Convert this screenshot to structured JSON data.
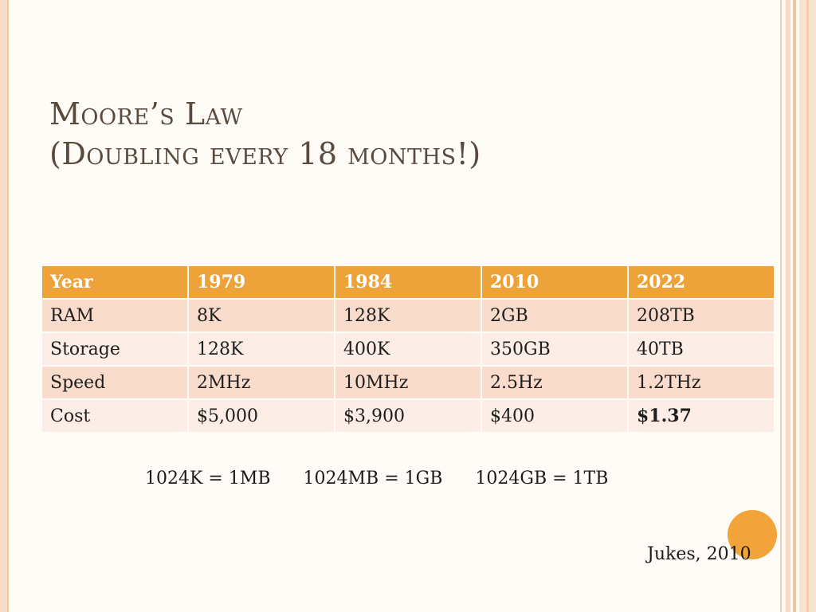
{
  "title": {
    "line1": "Moore’s Law",
    "line2": "(Doubling every 18 months!)"
  },
  "table": {
    "headers": [
      "Year",
      "1979",
      "1984",
      "2010",
      "2022"
    ],
    "rows": [
      [
        "RAM",
        "8K",
        "128K",
        "2GB",
        "208TB"
      ],
      [
        "Storage",
        "128K",
        "400K",
        "350GB",
        "40TB"
      ],
      [
        "Speed",
        "2MHz",
        "10MHz",
        "2.5Hz",
        "1.2THz"
      ],
      [
        "Cost",
        "$5,000",
        "$3,900",
        "$400",
        "$1.37"
      ]
    ]
  },
  "conversions": [
    "1024K = 1MB",
    "1024MB = 1GB",
    "1024GB = 1TB"
  ],
  "citation": "Jukes, 2010",
  "colors": {
    "header_fill": "#eda33a",
    "row_odd": "#f9dccb",
    "row_even": "#fcede6",
    "highlight_text": "#22a745",
    "accent_circle": "#f2a33a",
    "title_text": "#5a4a3e"
  }
}
